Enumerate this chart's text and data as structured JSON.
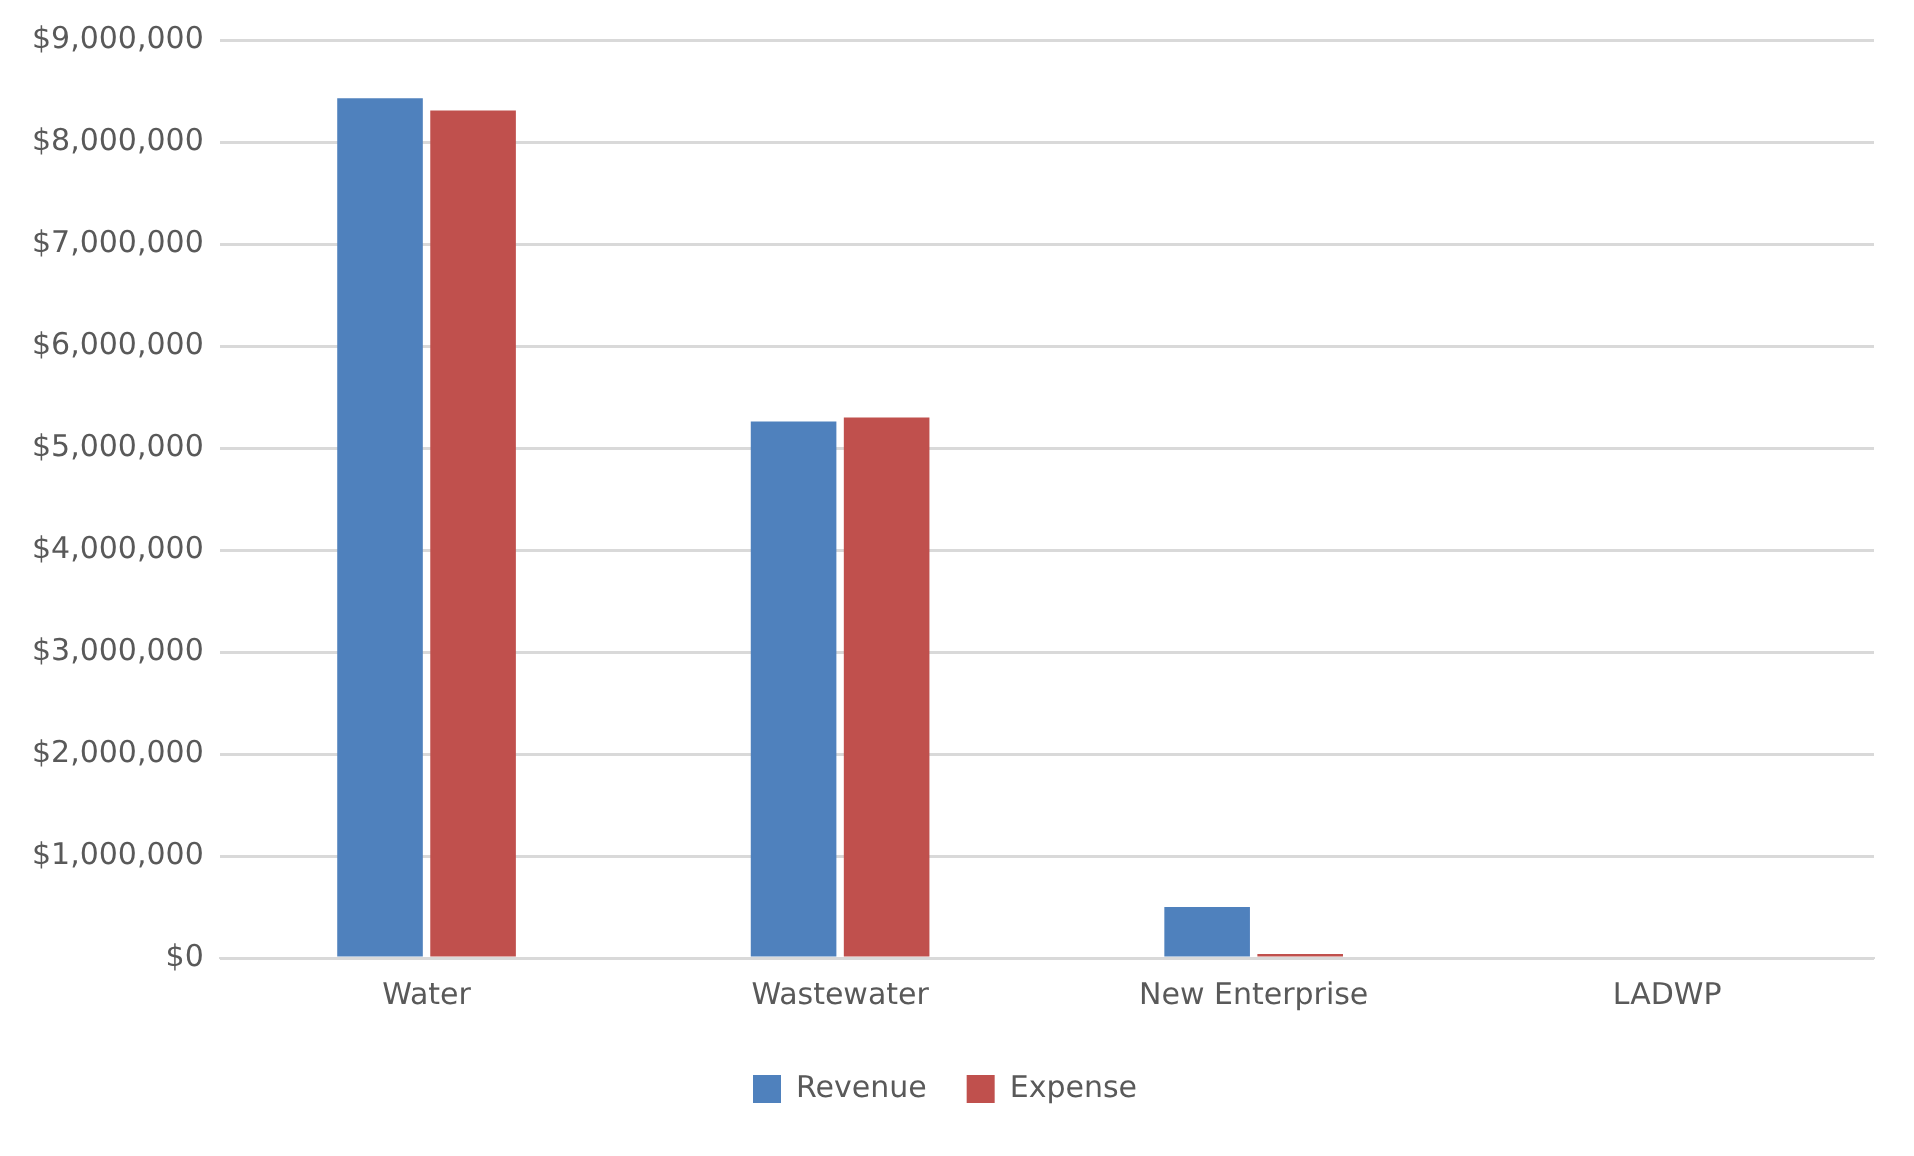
{
  "chart_data": {
    "type": "bar",
    "categories": [
      "Water",
      "Wastewater",
      "New Enterprise",
      "LADWP"
    ],
    "series": [
      {
        "name": "Revenue",
        "color": "#4f81bd",
        "values": [
          8430000,
          5260000,
          500000,
          0
        ]
      },
      {
        "name": "Expense",
        "color": "#c0504d",
        "values": [
          8310000,
          5300000,
          40000,
          0
        ]
      }
    ],
    "ylim": [
      0,
      9000000
    ],
    "yticks": [
      {
        "value": 0,
        "label": "$0"
      },
      {
        "value": 1000000,
        "label": "$1,000,000"
      },
      {
        "value": 2000000,
        "label": "$2,000,000"
      },
      {
        "value": 3000000,
        "label": "$3,000,000"
      },
      {
        "value": 4000000,
        "label": "$4,000,000"
      },
      {
        "value": 5000000,
        "label": "$5,000,000"
      },
      {
        "value": 6000000,
        "label": "$6,000,000"
      },
      {
        "value": 7000000,
        "label": "$7,000,000"
      },
      {
        "value": 8000000,
        "label": "$8,000,000"
      },
      {
        "value": 9000000,
        "label": "$9,000,000"
      }
    ],
    "grid": "y",
    "legend": "bottom"
  }
}
